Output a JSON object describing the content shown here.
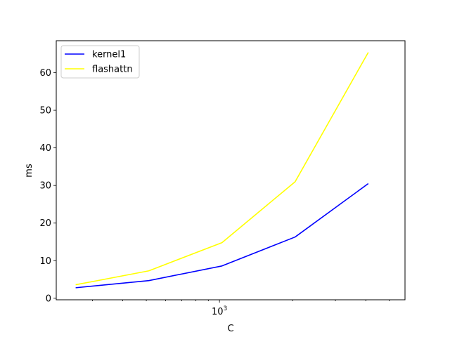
{
  "chart_data": {
    "type": "line",
    "title": "",
    "xlabel": "C",
    "ylabel": "ms",
    "xscale": "log",
    "xlim": [
      213,
      5800
    ],
    "ylim": [
      -0.4,
      68.5
    ],
    "x_ticks": [
      {
        "value": 1000,
        "base": "10",
        "exp": "3"
      }
    ],
    "y_ticks": [
      "0",
      "10",
      "20",
      "30",
      "40",
      "50",
      "60"
    ],
    "legend_position": "top-left",
    "grid": false,
    "x": [
      256,
      512,
      1024,
      2048,
      4096
    ],
    "series": [
      {
        "name": "kernel1",
        "color": "#0000ff",
        "values": [
          2.8,
          4.7,
          8.6,
          16.3,
          30.5
        ]
      },
      {
        "name": "flashattn",
        "color": "#ffff00",
        "values": [
          3.6,
          7.3,
          14.8,
          31.0,
          65.4
        ]
      }
    ]
  }
}
